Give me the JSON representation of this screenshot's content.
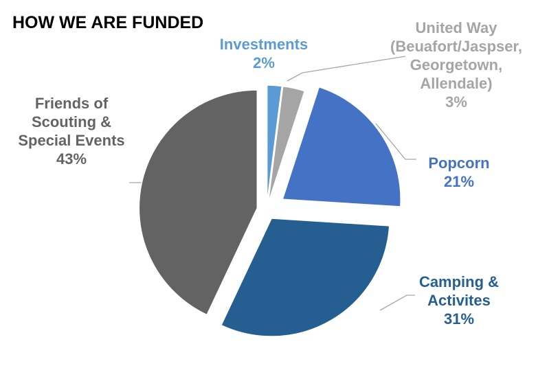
{
  "chart_data": {
    "type": "pie",
    "title": "HOW WE ARE FUNDED",
    "start_angle_deg": 0,
    "direction": "clockwise",
    "slices": [
      {
        "label_lines": [
          "Investments"
        ],
        "value": 2,
        "value_label": "2%",
        "color": "#5b9bd5",
        "label_color": "#5b9bd5"
      },
      {
        "label_lines": [
          "United Way",
          "(Beuafort/Jaspser,",
          "Georgetown,",
          "Allendale)"
        ],
        "value": 3,
        "value_label": "3%",
        "color": "#a5a5a5",
        "label_color": "#a5a5a5"
      },
      {
        "label_lines": [
          "Popcorn"
        ],
        "value": 21,
        "value_label": "21%",
        "color": "#4472c4",
        "label_color": "#4472c4"
      },
      {
        "label_lines": [
          "Camping &",
          "Activites"
        ],
        "value": 31,
        "value_label": "31%",
        "color": "#255e91",
        "label_color": "#255e91"
      },
      {
        "label_lines": [
          "Friends of",
          "Scouting &",
          "Special Events"
        ],
        "value": 43,
        "value_label": "43%",
        "color": "#636363",
        "label_color": "#636363"
      }
    ]
  }
}
